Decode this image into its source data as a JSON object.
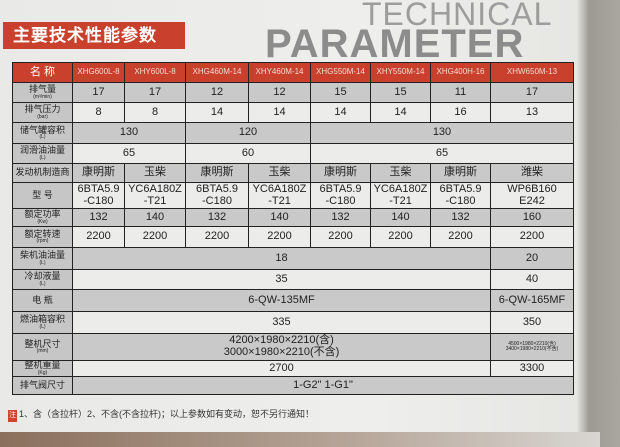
{
  "title_cn": "主要技术性能参数",
  "title_en_1": "TECHNICAL",
  "title_en_2": "PARAMETER",
  "accent_color": "#c9412c",
  "table": {
    "header": {
      "label": "名  称",
      "models": [
        "XHG600L-8",
        "XHY600L-8",
        "XHG460M-14",
        "XHY460M-14",
        "XHG550M-14",
        "XHY550M-14",
        "XHG400H-16",
        "XHW650M-13"
      ]
    },
    "rows": [
      {
        "label": "排气量",
        "unit": "(m³/min)",
        "shade": "g",
        "cells": [
          {
            "t": "17"
          },
          {
            "t": "17"
          },
          {
            "t": "12"
          },
          {
            "t": "12"
          },
          {
            "t": "15"
          },
          {
            "t": "15"
          },
          {
            "t": "11"
          },
          {
            "t": "17"
          }
        ]
      },
      {
        "label": "排气压力",
        "unit": "(bar)",
        "shade": "w",
        "cells": [
          {
            "t": "8"
          },
          {
            "t": "8"
          },
          {
            "t": "14"
          },
          {
            "t": "14"
          },
          {
            "t": "14"
          },
          {
            "t": "14"
          },
          {
            "t": "16"
          },
          {
            "t": "13"
          }
        ]
      },
      {
        "label": "储气罐容积",
        "unit": "(L)",
        "shade": "g",
        "cells": [
          {
            "t": "130",
            "span": 2
          },
          {
            "t": "120",
            "span": 2
          },
          {
            "t": "130",
            "span": 4
          }
        ]
      },
      {
        "label": "润滑油油量",
        "unit": "(L)",
        "shade": "w",
        "cells": [
          {
            "t": "65",
            "span": 2
          },
          {
            "t": "60",
            "span": 2
          },
          {
            "t": "65",
            "span": 4
          }
        ]
      },
      {
        "label": "发动机制造商",
        "unit": "",
        "shade": "g",
        "cells": [
          {
            "t": "康明斯"
          },
          {
            "t": "玉柴"
          },
          {
            "t": "康明斯"
          },
          {
            "t": "玉柴"
          },
          {
            "t": "康明斯"
          },
          {
            "t": "玉柴"
          },
          {
            "t": "康明斯"
          },
          {
            "t": "潍柴"
          }
        ]
      },
      {
        "label": "型  号",
        "unit": "",
        "shade": "w",
        "cells": [
          {
            "t": "6BTA5.9\n-C180"
          },
          {
            "t": "YC6A180Z\n-T21"
          },
          {
            "t": "6BTA5.9\n-C180"
          },
          {
            "t": "YC6A180Z\n-T21"
          },
          {
            "t": "6BTA5.9\n-C180"
          },
          {
            "t": "YC6A180Z\n-T21"
          },
          {
            "t": "6BTA5.9\n-C180"
          },
          {
            "t": "WP6B160\nE242"
          }
        ]
      },
      {
        "label": "额定功率",
        "unit": "(Kw)",
        "shade": "g",
        "cells": [
          {
            "t": "132"
          },
          {
            "t": "140"
          },
          {
            "t": "132"
          },
          {
            "t": "140"
          },
          {
            "t": "132"
          },
          {
            "t": "140"
          },
          {
            "t": "132"
          },
          {
            "t": "160"
          }
        ]
      },
      {
        "label": "额定转速",
        "unit": "(rpm)",
        "shade": "w",
        "cells": [
          {
            "t": "2200"
          },
          {
            "t": "2200"
          },
          {
            "t": "2200"
          },
          {
            "t": "2200"
          },
          {
            "t": "2200"
          },
          {
            "t": "2200"
          },
          {
            "t": "2200"
          },
          {
            "t": "2200"
          }
        ]
      },
      {
        "label": "柴机油油量",
        "unit": "(L)",
        "shade": "g",
        "cells": [
          {
            "t": "18",
            "span": 7
          },
          {
            "t": "20"
          }
        ]
      },
      {
        "label": "冷却液量",
        "unit": "(L)",
        "shade": "w",
        "cells": [
          {
            "t": "35",
            "span": 7
          },
          {
            "t": "40"
          }
        ]
      },
      {
        "label": "电  瓶",
        "unit": "",
        "shade": "g",
        "cells": [
          {
            "t": "6-QW-135MF",
            "span": 7
          },
          {
            "t": "6-QW-165MF"
          }
        ]
      },
      {
        "label": "燃油箱容积",
        "unit": "(L)",
        "shade": "w",
        "cells": [
          {
            "t": "335",
            "span": 7
          },
          {
            "t": "350"
          }
        ]
      },
      {
        "label": "整机尺寸",
        "unit": "(mm)",
        "shade": "g",
        "cells": [
          {
            "t": "4200×1980×2210(含)\n3000×1980×2210(不含)",
            "span": 7
          },
          {
            "t": "4500×1980×2210(含)\n3400×1980×2210(不含)",
            "tiny": true
          }
        ]
      },
      {
        "label": "整机重量",
        "unit": "(Kg)",
        "shade": "w",
        "cells": [
          {
            "t": "2700",
            "span": 7
          },
          {
            "t": "3300"
          }
        ]
      },
      {
        "label": "排气阀尺寸",
        "unit": "",
        "shade": "g",
        "cells": [
          {
            "t": "1-G2\" 1-G1\"",
            "span": 8
          }
        ]
      }
    ]
  },
  "footnote": {
    "tag": "注",
    "text": "1、含（含拉杆）2、不含(不含拉杆)；以上参数如有变动，恕不另行通知！"
  }
}
